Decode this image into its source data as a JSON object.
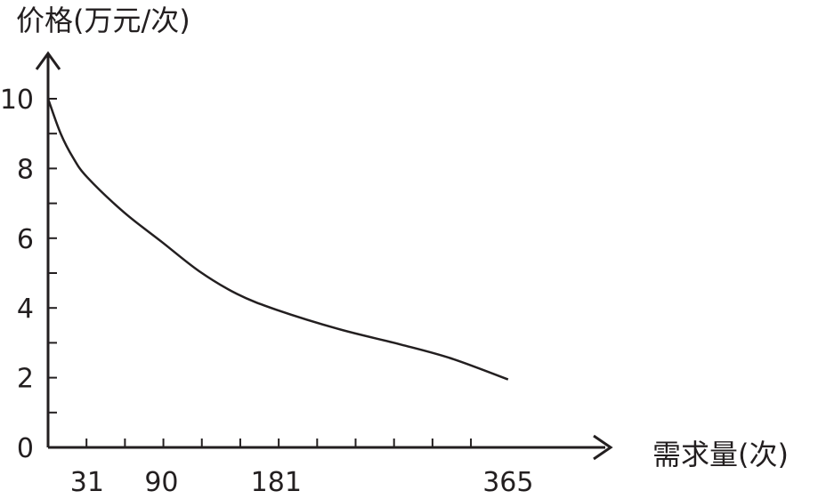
{
  "chart_data": {
    "type": "line",
    "xlabel": "需求量(次)",
    "ylabel": "价格(万元/次)",
    "x_tick_labels": [
      {
        "value": 31,
        "label": "31"
      },
      {
        "value": 90,
        "label": "90"
      },
      {
        "value": 181,
        "label": "181"
      },
      {
        "value": 365,
        "label": "365"
      }
    ],
    "y_tick_labels": [
      {
        "value": 0,
        "label": "0"
      },
      {
        "value": 2,
        "label": "2"
      },
      {
        "value": 4,
        "label": "4"
      },
      {
        "value": 6,
        "label": "6"
      },
      {
        "value": 8,
        "label": "8"
      },
      {
        "value": 10,
        "label": "10"
      }
    ],
    "xlim": [
      0,
      430
    ],
    "ylim": [
      0,
      10.5
    ],
    "x_minor_step": 30.5,
    "y_minor_step": 1,
    "grid": false,
    "series": [
      {
        "points": [
          {
            "x": 0,
            "y": 10
          },
          {
            "x": 10,
            "y": 9
          },
          {
            "x": 20,
            "y": 8.3
          },
          {
            "x": 31,
            "y": 7.75
          },
          {
            "x": 60,
            "y": 6.75
          },
          {
            "x": 90,
            "y": 5.9
          },
          {
            "x": 120,
            "y": 5.05
          },
          {
            "x": 150,
            "y": 4.4
          },
          {
            "x": 181,
            "y": 3.95
          },
          {
            "x": 230,
            "y": 3.4
          },
          {
            "x": 280,
            "y": 2.95
          },
          {
            "x": 320,
            "y": 2.55
          },
          {
            "x": 365,
            "y": 1.95
          }
        ]
      }
    ]
  }
}
